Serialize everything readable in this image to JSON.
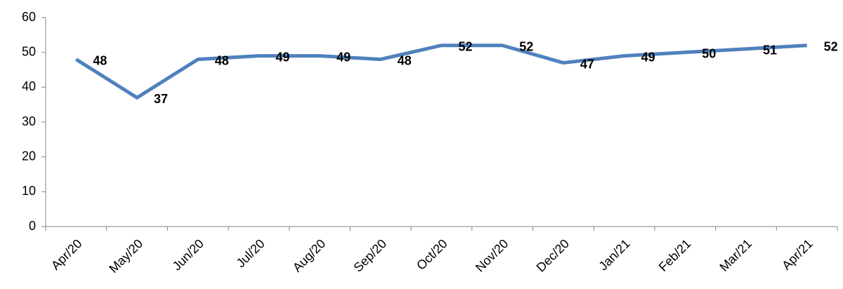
{
  "chart_data": {
    "type": "line",
    "categories": [
      "Apr/20",
      "May/20",
      "Jun/20",
      "Jul/20",
      "Aug/20",
      "Sep/20",
      "Oct/20",
      "Nov/20",
      "Dec/20",
      "Jan/21",
      "Feb/21",
      "Mar/21",
      "Apr/21"
    ],
    "values": [
      48,
      37,
      48,
      49,
      49,
      48,
      52,
      52,
      47,
      49,
      50,
      51,
      52
    ],
    "color": "#4f81bd",
    "ylim": [
      0,
      60
    ],
    "yticks": [
      0,
      10,
      20,
      30,
      40,
      50,
      60
    ],
    "grid": false
  }
}
